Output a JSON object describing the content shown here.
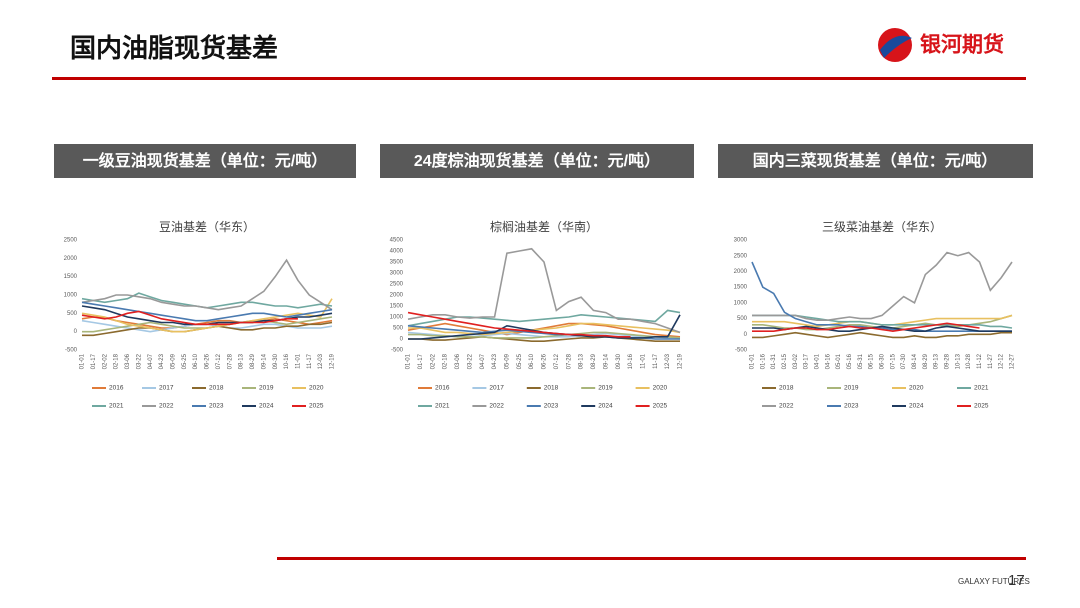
{
  "header": {
    "title": "国内油脂现货基差",
    "logo": "银河期货"
  },
  "panels": [
    "一级豆油现货基差（单位：元/吨）",
    "24度棕油现货基差（单位：元/吨）",
    "国内三菜现货基差（单位：元/吨）"
  ],
  "chart_data": [
    {
      "type": "line",
      "title": "豆油基差（华东）",
      "categories": [
        "01-01",
        "01-17",
        "02-02",
        "02-18",
        "03-06",
        "03-22",
        "04-07",
        "04-23",
        "05-09",
        "05-25",
        "06-10",
        "06-26",
        "07-12",
        "07-28",
        "08-13",
        "08-29",
        "09-14",
        "09-30",
        "10-16",
        "11-01",
        "11-17",
        "12-03",
        "12-19"
      ],
      "ylim": [
        -500,
        2500
      ],
      "yticks": [
        -500,
        0,
        500,
        1000,
        1500,
        2000,
        2500
      ],
      "series": [
        {
          "name": "2016",
          "color": "#e07b39",
          "values": [
            350,
            400,
            380,
            300,
            250,
            200,
            150,
            100,
            100,
            150,
            200,
            250,
            300,
            300,
            250,
            250,
            300,
            350,
            300,
            250,
            200,
            250,
            300
          ]
        },
        {
          "name": "2017",
          "color": "#a5c8e4",
          "values": [
            300,
            250,
            200,
            150,
            100,
            50,
            0,
            50,
            100,
            150,
            200,
            200,
            150,
            100,
            100,
            150,
            200,
            200,
            150,
            100,
            100,
            100,
            150
          ]
        },
        {
          "name": "2018",
          "color": "#8b6a2e",
          "values": [
            -100,
            -100,
            -50,
            0,
            50,
            100,
            100,
            50,
            0,
            0,
            50,
            100,
            150,
            100,
            50,
            50,
            100,
            100,
            150,
            150,
            200,
            200,
            250
          ]
        },
        {
          "name": "2019",
          "color": "#a9b57a",
          "values": [
            0,
            0,
            50,
            100,
            150,
            200,
            250,
            200,
            150,
            100,
            100,
            100,
            150,
            200,
            250,
            300,
            300,
            250,
            200,
            250,
            300,
            350,
            400
          ]
        },
        {
          "name": "2020",
          "color": "#e8c060",
          "values": [
            500,
            450,
            400,
            300,
            200,
            150,
            100,
            50,
            0,
            0,
            50,
            100,
            150,
            200,
            250,
            300,
            350,
            400,
            450,
            500,
            450,
            400,
            900
          ]
        },
        {
          "name": "2021",
          "color": "#6fa8a0",
          "values": [
            900,
            850,
            800,
            850,
            900,
            1050,
            950,
            850,
            800,
            750,
            700,
            650,
            700,
            750,
            800,
            800,
            750,
            700,
            700,
            650,
            700,
            750,
            700
          ]
        },
        {
          "name": "2022",
          "color": "#999999",
          "values": [
            800,
            850,
            900,
            1000,
            1000,
            950,
            900,
            800,
            750,
            700,
            700,
            650,
            600,
            650,
            700,
            900,
            1100,
            1500,
            1950,
            1400,
            1000,
            800,
            600
          ]
        },
        {
          "name": "2023",
          "color": "#4a7ab0",
          "values": [
            800,
            750,
            700,
            650,
            600,
            550,
            500,
            450,
            400,
            350,
            300,
            300,
            350,
            400,
            450,
            500,
            500,
            450,
            400,
            450,
            500,
            550,
            600
          ]
        },
        {
          "name": "2024",
          "color": "#1f3a5f",
          "values": [
            700,
            650,
            600,
            500,
            400,
            350,
            300,
            250,
            250,
            200,
            200,
            200,
            250,
            250,
            250,
            250,
            300,
            300,
            350,
            400,
            400,
            450,
            500
          ]
        },
        {
          "name": "2025",
          "color": "#e02020",
          "values": [
            450,
            400,
            350,
            400,
            500,
            550,
            450,
            350,
            300,
            250,
            200,
            200,
            200,
            200,
            250,
            250,
            250,
            300,
            350,
            350,
            null,
            null,
            null
          ]
        }
      ]
    },
    {
      "type": "line",
      "title": "棕榈油基差（华南）",
      "categories": [
        "01-01",
        "01-17",
        "02-02",
        "02-18",
        "03-06",
        "03-22",
        "04-07",
        "04-23",
        "05-09",
        "05-25",
        "06-10",
        "06-26",
        "07-12",
        "07-28",
        "08-13",
        "08-29",
        "09-14",
        "09-30",
        "10-16",
        "11-01",
        "11-17",
        "12-03",
        "12-19"
      ],
      "ylim": [
        -500,
        4500
      ],
      "yticks": [
        -500,
        0,
        500,
        1000,
        1500,
        2000,
        2500,
        3000,
        3500,
        4000,
        4500
      ],
      "series": [
        {
          "name": "2016",
          "color": "#e07b39",
          "values": [
            400,
            500,
            600,
            700,
            600,
            500,
            400,
            300,
            200,
            300,
            400,
            500,
            600,
            700,
            700,
            650,
            600,
            500,
            400,
            300,
            200,
            150,
            100
          ]
        },
        {
          "name": "2017",
          "color": "#a5c8e4",
          "values": [
            300,
            250,
            200,
            150,
            100,
            100,
            150,
            200,
            250,
            200,
            150,
            100,
            100,
            100,
            150,
            200,
            250,
            200,
            150,
            100,
            100,
            50,
            0
          ]
        },
        {
          "name": "2018",
          "color": "#8b6a2e",
          "values": [
            0,
            0,
            -50,
            -50,
            0,
            50,
            100,
            50,
            0,
            -50,
            -100,
            -100,
            -50,
            0,
            50,
            50,
            100,
            50,
            0,
            -50,
            -100,
            -100,
            -100
          ]
        },
        {
          "name": "2019",
          "color": "#a9b57a",
          "values": [
            200,
            200,
            150,
            150,
            100,
            100,
            100,
            50,
            50,
            50,
            50,
            100,
            150,
            200,
            250,
            300,
            300,
            250,
            200,
            150,
            100,
            100,
            50
          ]
        },
        {
          "name": "2020",
          "color": "#e8c060",
          "values": [
            500,
            500,
            400,
            300,
            300,
            250,
            200,
            250,
            300,
            350,
            400,
            450,
            500,
            600,
            700,
            700,
            650,
            600,
            550,
            500,
            450,
            400,
            300
          ]
        },
        {
          "name": "2021",
          "color": "#6fa8a0",
          "values": [
            600,
            700,
            800,
            900,
            1000,
            1000,
            950,
            900,
            850,
            800,
            850,
            900,
            950,
            1000,
            1100,
            1050,
            1000,
            950,
            900,
            850,
            800,
            1300,
            1200
          ]
        },
        {
          "name": "2022",
          "color": "#999999",
          "values": [
            900,
            1000,
            1100,
            1100,
            1000,
            950,
            1000,
            1000,
            3900,
            4000,
            4100,
            3500,
            1300,
            1700,
            1900,
            1300,
            1200,
            900,
            900,
            800,
            700,
            500,
            300
          ]
        },
        {
          "name": "2023",
          "color": "#4a7ab0",
          "values": [
            600,
            550,
            500,
            450,
            400,
            350,
            300,
            350,
            400,
            350,
            300,
            250,
            200,
            200,
            150,
            150,
            100,
            100,
            50,
            50,
            0,
            0,
            0
          ]
        },
        {
          "name": "2024",
          "color": "#1f3a5f",
          "values": [
            0,
            0,
            50,
            100,
            150,
            200,
            250,
            300,
            600,
            500,
            400,
            300,
            250,
            200,
            150,
            100,
            100,
            50,
            50,
            50,
            100,
            100,
            1100
          ]
        },
        {
          "name": "2025",
          "color": "#e02020",
          "values": [
            1200,
            1100,
            1000,
            900,
            800,
            700,
            600,
            500,
            450,
            400,
            350,
            300,
            250,
            200,
            200,
            150,
            150,
            100,
            100,
            null,
            null,
            null,
            null
          ]
        }
      ]
    },
    {
      "type": "line",
      "title": "三级菜油基差（华东）",
      "categories": [
        "01-01",
        "01-16",
        "01-31",
        "02-15",
        "03-02",
        "03-17",
        "04-01",
        "04-16",
        "05-01",
        "05-16",
        "05-31",
        "06-15",
        "06-30",
        "07-15",
        "07-30",
        "08-14",
        "08-29",
        "09-13",
        "09-28",
        "10-13",
        "10-28",
        "11-12",
        "11-27",
        "12-12",
        "12-27"
      ],
      "ylim": [
        -500,
        3000
      ],
      "yticks": [
        -500,
        0,
        500,
        1000,
        1500,
        2000,
        2500,
        3000
      ],
      "series": [
        {
          "name": "2018",
          "color": "#8b6a2e",
          "values": [
            -100,
            -100,
            -50,
            0,
            50,
            0,
            -50,
            -100,
            -50,
            0,
            50,
            0,
            -50,
            -100,
            -100,
            -50,
            -100,
            -100,
            -50,
            -50,
            0,
            0,
            0,
            50,
            50
          ]
        },
        {
          "name": "2019",
          "color": "#a9b57a",
          "values": [
            300,
            300,
            250,
            200,
            200,
            150,
            150,
            200,
            250,
            300,
            300,
            250,
            200,
            200,
            250,
            300,
            350,
            300,
            250,
            250,
            300,
            350,
            400,
            500,
            600
          ]
        },
        {
          "name": "2020",
          "color": "#e8c060",
          "values": [
            400,
            400,
            400,
            400,
            350,
            300,
            250,
            300,
            350,
            400,
            400,
            350,
            300,
            300,
            350,
            400,
            450,
            500,
            500,
            500,
            500,
            500,
            500,
            500,
            600
          ]
        },
        {
          "name": "2021",
          "color": "#6fa8a0",
          "values": [
            600,
            600,
            600,
            600,
            600,
            550,
            500,
            450,
            400,
            400,
            400,
            350,
            300,
            300,
            300,
            300,
            300,
            300,
            300,
            300,
            300,
            300,
            250,
            250,
            200
          ]
        },
        {
          "name": "2022",
          "color": "#999999",
          "values": [
            600,
            600,
            600,
            600,
            600,
            500,
            450,
            450,
            500,
            550,
            500,
            500,
            600,
            900,
            1200,
            1000,
            1900,
            2200,
            2600,
            2500,
            2600,
            2300,
            1400,
            1800,
            2300
          ]
        },
        {
          "name": "2023",
          "color": "#4a7ab0",
          "values": [
            2300,
            1500,
            1300,
            700,
            500,
            400,
            300,
            300,
            300,
            250,
            250,
            200,
            200,
            150,
            150,
            150,
            100,
            100,
            100,
            100,
            100,
            100,
            100,
            100,
            100
          ]
        },
        {
          "name": "2024",
          "color": "#1f3a5f",
          "values": [
            200,
            200,
            200,
            150,
            200,
            250,
            200,
            150,
            100,
            100,
            150,
            200,
            250,
            200,
            150,
            100,
            100,
            200,
            250,
            200,
            150,
            100,
            100,
            100,
            100
          ]
        },
        {
          "name": "2025",
          "color": "#e02020",
          "values": [
            100,
            100,
            100,
            150,
            200,
            200,
            150,
            150,
            200,
            250,
            200,
            200,
            150,
            100,
            150,
            200,
            250,
            300,
            350,
            300,
            250,
            200,
            null,
            null,
            null
          ]
        }
      ]
    }
  ],
  "footer": {
    "brand": "GALAXY FUTURES",
    "page": 17
  }
}
